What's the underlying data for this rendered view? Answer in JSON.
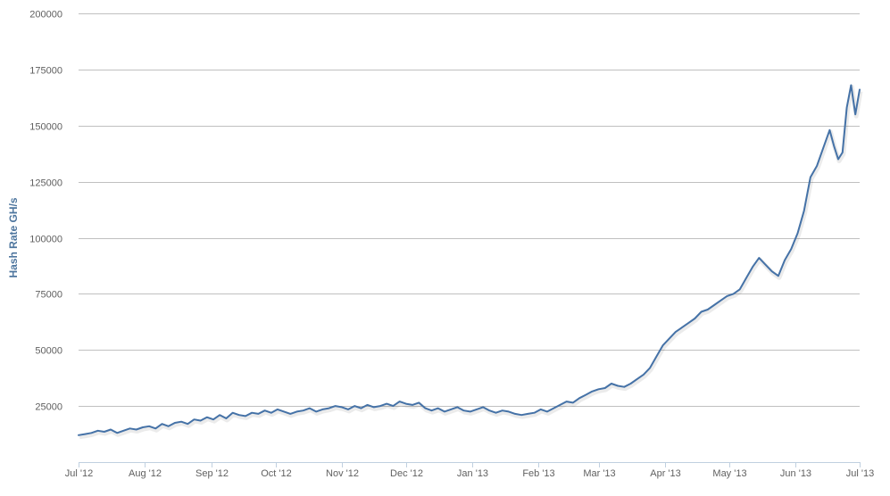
{
  "chart_data": {
    "type": "line",
    "title": "",
    "xlabel": "",
    "ylabel": "Hash Rate GH/s",
    "ylim": [
      0,
      200000
    ],
    "y_ticks": [
      25000,
      50000,
      75000,
      100000,
      125000,
      150000,
      175000,
      200000
    ],
    "y_tick_labels": [
      "25000",
      "50000",
      "75000",
      "100000",
      "125000",
      "150000",
      "175000",
      "200000"
    ],
    "x_range": [
      "2012-07-01",
      "2013-07-01"
    ],
    "x_ticks": [
      "2012-07-01",
      "2012-08-01",
      "2012-09-01",
      "2012-10-01",
      "2012-11-01",
      "2012-12-01",
      "2013-01-01",
      "2013-02-01",
      "2013-03-01",
      "2013-04-01",
      "2013-05-01",
      "2013-06-01",
      "2013-07-01"
    ],
    "x_tick_labels": [
      "Jul '12",
      "Aug '12",
      "Sep '12",
      "Oct '12",
      "Nov '12",
      "Dec '12",
      "Jan '13",
      "Feb '13",
      "Mar '13",
      "Apr '13",
      "May '13",
      "Jun '13",
      "Jul '13"
    ],
    "grid": true,
    "legend": "none",
    "line_color": "#4572a7",
    "series": [
      {
        "name": "",
        "x": [
          "2012-07-01",
          "2012-07-04",
          "2012-07-07",
          "2012-07-10",
          "2012-07-13",
          "2012-07-16",
          "2012-07-19",
          "2012-07-22",
          "2012-07-25",
          "2012-07-28",
          "2012-07-31",
          "2012-08-03",
          "2012-08-06",
          "2012-08-09",
          "2012-08-12",
          "2012-08-15",
          "2012-08-18",
          "2012-08-21",
          "2012-08-24",
          "2012-08-27",
          "2012-08-30",
          "2012-09-02",
          "2012-09-05",
          "2012-09-08",
          "2012-09-11",
          "2012-09-14",
          "2012-09-17",
          "2012-09-20",
          "2012-09-23",
          "2012-09-26",
          "2012-09-29",
          "2012-10-02",
          "2012-10-05",
          "2012-10-08",
          "2012-10-11",
          "2012-10-14",
          "2012-10-17",
          "2012-10-20",
          "2012-10-23",
          "2012-10-26",
          "2012-10-29",
          "2012-11-01",
          "2012-11-04",
          "2012-11-07",
          "2012-11-10",
          "2012-11-13",
          "2012-11-16",
          "2012-11-19",
          "2012-11-22",
          "2012-11-25",
          "2012-11-28",
          "2012-12-01",
          "2012-12-04",
          "2012-12-07",
          "2012-12-10",
          "2012-12-13",
          "2012-12-16",
          "2012-12-19",
          "2012-12-22",
          "2012-12-25",
          "2012-12-28",
          "2012-12-31",
          "2013-01-03",
          "2013-01-06",
          "2013-01-09",
          "2013-01-12",
          "2013-01-15",
          "2013-01-18",
          "2013-01-21",
          "2013-01-24",
          "2013-01-27",
          "2013-01-30",
          "2013-02-02",
          "2013-02-05",
          "2013-02-08",
          "2013-02-11",
          "2013-02-14",
          "2013-02-17",
          "2013-02-20",
          "2013-02-23",
          "2013-02-26",
          "2013-03-01",
          "2013-03-04",
          "2013-03-07",
          "2013-03-10",
          "2013-03-13",
          "2013-03-16",
          "2013-03-19",
          "2013-03-22",
          "2013-03-25",
          "2013-03-28",
          "2013-03-31",
          "2013-04-03",
          "2013-04-06",
          "2013-04-09",
          "2013-04-12",
          "2013-04-15",
          "2013-04-18",
          "2013-04-21",
          "2013-04-24",
          "2013-04-27",
          "2013-04-30",
          "2013-05-03",
          "2013-05-06",
          "2013-05-09",
          "2013-05-12",
          "2013-05-15",
          "2013-05-18",
          "2013-05-21",
          "2013-05-24",
          "2013-05-27",
          "2013-05-30",
          "2013-06-02",
          "2013-06-05",
          "2013-06-08",
          "2013-06-11",
          "2013-06-14",
          "2013-06-17",
          "2013-06-19",
          "2013-06-21",
          "2013-06-23",
          "2013-06-25",
          "2013-06-27",
          "2013-06-29",
          "2013-07-01"
        ],
        "values": [
          12000,
          12500,
          13000,
          14000,
          13500,
          14500,
          13000,
          14000,
          15000,
          14500,
          15500,
          16000,
          15000,
          17000,
          16000,
          17500,
          18000,
          17000,
          19000,
          18500,
          20000,
          19000,
          21000,
          19500,
          22000,
          21000,
          20500,
          22000,
          21500,
          23000,
          22000,
          23500,
          22500,
          21500,
          22500,
          23000,
          24000,
          22500,
          23500,
          24000,
          25000,
          24500,
          23500,
          25000,
          24000,
          25500,
          24500,
          25000,
          26000,
          25000,
          27000,
          26000,
          25500,
          26500,
          24000,
          23000,
          24000,
          22500,
          23500,
          24500,
          23000,
          22500,
          23500,
          24500,
          23000,
          22000,
          23000,
          22500,
          21500,
          21000,
          21500,
          22000,
          23500,
          22500,
          24000,
          25500,
          27000,
          26500,
          28500,
          30000,
          31500,
          32500,
          33000,
          35000,
          34000,
          33500,
          35000,
          37000,
          39000,
          42000,
          47000,
          52000,
          55000,
          58000,
          60000,
          62000,
          64000,
          67000,
          68000,
          70000,
          72000,
          74000,
          75000,
          77000,
          82000,
          87000,
          91000,
          88000,
          85000,
          83000,
          90000,
          95000,
          102000,
          112000,
          127000,
          132000,
          140000,
          148000,
          141000,
          135000,
          138000,
          158000,
          168000,
          155000,
          166000
        ],
        "spikes_note": ""
      }
    ]
  }
}
